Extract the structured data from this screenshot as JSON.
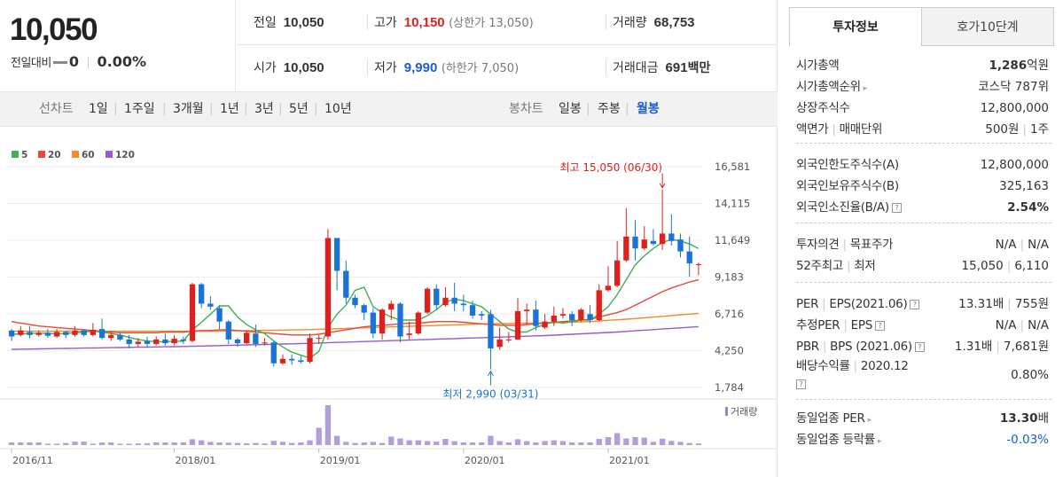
{
  "price": {
    "current": "10,050",
    "change_label": "전일대비",
    "change_value": "0",
    "change_pct": "0.00%"
  },
  "info": {
    "prev_label": "전일",
    "prev_value": "10,050",
    "high_label": "고가",
    "high_value": "10,150",
    "upper_limit": "(상한가 13,050)",
    "volume_label": "거래량",
    "volume_value": "68,753",
    "open_label": "시가",
    "open_value": "10,050",
    "low_label": "저가",
    "low_value": "9,990",
    "lower_limit": "(하한가 7,050)",
    "amount_label": "거래대금",
    "amount_value": "691",
    "amount_unit": "백만"
  },
  "period_bar": {
    "line_label": "선차트",
    "line_options": [
      "1일",
      "1주일",
      "3개월",
      "1년",
      "3년",
      "5년",
      "10년"
    ],
    "candle_label": "봉차트",
    "candle_options": [
      "일봉",
      "주봉",
      "월봉"
    ],
    "selected_candle": "월봉"
  },
  "chart_data": {
    "type": "candlestick",
    "legend": [
      {
        "name": "5",
        "color": "#3cb44b"
      },
      {
        "name": "20",
        "color": "#e8473b"
      },
      {
        "name": "60",
        "color": "#f28c28"
      },
      {
        "name": "120",
        "color": "#9b59d0"
      }
    ],
    "y_ticks": [
      "16,581",
      "14,115",
      "11,649",
      "9,183",
      "6,716",
      "4,250",
      "1,784"
    ],
    "ylim": [
      1784,
      16581
    ],
    "x_ticks": [
      "2016/11",
      "2018/01",
      "2019/01",
      "2020/01",
      "2021/01"
    ],
    "high_annotation": "최고 15,050 (06/30)",
    "low_annotation": "최저 2,990 (03/31)",
    "volume_label": "거래량",
    "ohlc": [
      [
        5600,
        5200,
        5700,
        4900
      ],
      [
        5300,
        5600,
        5900,
        5200
      ],
      [
        5500,
        5300,
        5900,
        5100
      ],
      [
        5300,
        5450,
        5600,
        5200
      ],
      [
        5450,
        5250,
        5700,
        5100
      ],
      [
        5200,
        5500,
        5700,
        5100
      ],
      [
        5500,
        5300,
        5600,
        5100
      ],
      [
        5300,
        5600,
        5900,
        5200
      ],
      [
        5600,
        5300,
        5700,
        5200
      ],
      [
        5300,
        5650,
        6100,
        5200
      ],
      [
        5700,
        5100,
        6400,
        5000
      ],
      [
        5100,
        5300,
        5500,
        4900
      ],
      [
        5300,
        5000,
        5500,
        4900
      ],
      [
        5000,
        4700,
        5300,
        4400
      ],
      [
        4700,
        4850,
        5100,
        4500
      ],
      [
        4900,
        4700,
        5200,
        4500
      ],
      [
        4700,
        5000,
        5200,
        4600
      ],
      [
        5000,
        4750,
        5400,
        4600
      ],
      [
        4750,
        5050,
        5300,
        4600
      ],
      [
        5000,
        4900,
        5200,
        4700
      ],
      [
        4900,
        8700,
        8800,
        4800
      ],
      [
        8700,
        7400,
        8800,
        7100
      ],
      [
        7400,
        7200,
        7900,
        7000
      ],
      [
        7100,
        6200,
        7300,
        5700
      ],
      [
        6200,
        5000,
        6300,
        4700
      ],
      [
        5000,
        4750,
        5100,
        4500
      ],
      [
        4750,
        5450,
        5600,
        4700
      ],
      [
        5400,
        4700,
        6000,
        4500
      ],
      [
        4800,
        4800,
        5100,
        4600
      ],
      [
        4800,
        3400,
        4900,
        3200
      ],
      [
        3400,
        3700,
        4000,
        3300
      ],
      [
        3700,
        3600,
        4000,
        3300
      ],
      [
        3600,
        3500,
        3900,
        3400
      ],
      [
        3500,
        5100,
        5400,
        3400
      ],
      [
        5100,
        5100,
        5300,
        4700
      ],
      [
        5200,
        11800,
        12400,
        5000
      ],
      [
        11800,
        9600,
        11800,
        8300
      ],
      [
        9600,
        7800,
        10300,
        7400
      ],
      [
        7800,
        7300,
        8000,
        7100
      ],
      [
        7300,
        6800,
        7400,
        6300
      ],
      [
        6800,
        5400,
        7100,
        5100
      ],
      [
        5400,
        7000,
        7100,
        5000
      ],
      [
        7000,
        7400,
        7600,
        6300
      ],
      [
        7400,
        5200,
        7500,
        4800
      ],
      [
        5300,
        5400,
        6200,
        5000
      ],
      [
        5400,
        6800,
        6900,
        5300
      ],
      [
        6800,
        8400,
        8500,
        6700
      ],
      [
        8400,
        7300,
        8700,
        7000
      ],
      [
        7300,
        7800,
        8500,
        7200
      ],
      [
        7800,
        7400,
        8800,
        6900
      ],
      [
        7400,
        7300,
        8000,
        6900
      ],
      [
        7300,
        6600,
        7600,
        6400
      ],
      [
        6700,
        6600,
        6900,
        6300
      ],
      [
        6700,
        4400,
        7000,
        2990
      ],
      [
        4500,
        5000,
        5800,
        4300
      ],
      [
        5000,
        5000,
        5500,
        4800
      ],
      [
        5000,
        6900,
        7800,
        5000
      ],
      [
        6900,
        7000,
        7400,
        6000
      ],
      [
        7000,
        5900,
        7600,
        5600
      ],
      [
        5800,
        6200,
        6700,
        5700
      ],
      [
        6200,
        6600,
        7200,
        5900
      ],
      [
        6600,
        6700,
        7100,
        6400
      ],
      [
        6700,
        6300,
        6900,
        5900
      ],
      [
        6300,
        7000,
        7100,
        6200
      ],
      [
        6700,
        6300,
        7300,
        6100
      ],
      [
        6300,
        8300,
        8700,
        6200
      ],
      [
        8300,
        8600,
        9900,
        8200
      ],
      [
        8600,
        10300,
        11600,
        8500
      ],
      [
        10300,
        11900,
        13800,
        10200
      ],
      [
        11900,
        11100,
        13000,
        10300
      ],
      [
        11100,
        11700,
        12600,
        11000
      ],
      [
        11600,
        11400,
        12400,
        11300
      ],
      [
        11400,
        12100,
        15050,
        11000
      ],
      [
        12100,
        11600,
        13400,
        11300
      ],
      [
        11700,
        10900,
        12100,
        10500
      ],
      [
        10900,
        10100,
        11900,
        9200
      ],
      [
        10050,
        10050,
        10150,
        9300
      ]
    ],
    "sma5": [
      5350,
      5380,
      5400,
      5420,
      5410,
      5380,
      5400,
      5450,
      5500,
      5550,
      5500,
      5400,
      5300,
      5150,
      5000,
      4900,
      4850,
      4850,
      4880,
      4880,
      5650,
      6150,
      6700,
      7250,
      7250,
      6500,
      6000,
      5650,
      5400,
      4900,
      4500,
      4150,
      3950,
      3750,
      4200,
      5800,
      6700,
      7300,
      8300,
      8500,
      7200,
      6800,
      6500,
      6300,
      6300,
      6300,
      6600,
      7000,
      7500,
      7700,
      7600,
      7400,
      7200,
      6700,
      6200,
      5700,
      5500,
      5500,
      5800,
      6000,
      6200,
      6100,
      6200,
      6300,
      6300,
      6700,
      7200,
      8000,
      9000,
      10000,
      10600,
      11100,
      11500,
      11700,
      11600,
      11400,
      11100
    ],
    "sma20": [
      6200,
      6100,
      6000,
      5900,
      5850,
      5800,
      5750,
      5700,
      5650,
      5600,
      5550,
      5500,
      5450,
      5450,
      5450,
      5450,
      5450,
      5500,
      5500,
      5500,
      5550,
      5600,
      5600,
      5650,
      5650,
      5600,
      5550,
      5500,
      5450,
      5400,
      5350,
      5300,
      5300,
      5300,
      5350,
      5450,
      5550,
      5650,
      5750,
      5850,
      5900,
      5950,
      6000,
      6050,
      6100,
      6100,
      6150,
      6200,
      6200,
      6200,
      6150,
      6100,
      6050,
      6000,
      5950,
      5950,
      5950,
      6000,
      6050,
      6100,
      6150,
      6200,
      6250,
      6300,
      6350,
      6500,
      6650,
      6800,
      7000,
      7300,
      7600,
      7900,
      8200,
      8450,
      8650,
      8850,
      9000
    ],
    "sma60": [
      5550,
      5550,
      5550,
      5550,
      5550,
      5550,
      5550,
      5550,
      5550,
      5550,
      5550,
      5550,
      5550,
      5550,
      5550,
      5550,
      5550,
      5550,
      5550,
      5550,
      5550,
      5550,
      5550,
      5560,
      5570,
      5580,
      5590,
      5600,
      5610,
      5620,
      5630,
      5640,
      5650,
      5660,
      5680,
      5700,
      5720,
      5740,
      5760,
      5780,
      5800,
      5820,
      5840,
      5860,
      5880,
      5900,
      5920,
      5940,
      5960,
      5980,
      6000,
      6020,
      6040,
      6050,
      6060,
      6070,
      6080,
      6090,
      6100,
      6110,
      6120,
      6140,
      6160,
      6180,
      6200,
      6240,
      6280,
      6320,
      6360,
      6400,
      6450,
      6500,
      6550,
      6600,
      6650,
      6700,
      6750
    ],
    "sma120": [
      4340,
      4350,
      4360,
      4370,
      4380,
      4390,
      4400,
      4410,
      4420,
      4430,
      4440,
      4450,
      4460,
      4470,
      4480,
      4490,
      4500,
      4510,
      4520,
      4530,
      4545,
      4560,
      4575,
      4590,
      4605,
      4620,
      4635,
      4650,
      4665,
      4680,
      4695,
      4710,
      4725,
      4740,
      4760,
      4780,
      4800,
      4820,
      4840,
      4860,
      4880,
      4900,
      4920,
      4940,
      4960,
      4980,
      5000,
      5020,
      5040,
      5060,
      5080,
      5100,
      5120,
      5140,
      5160,
      5180,
      5200,
      5220,
      5240,
      5260,
      5290,
      5320,
      5350,
      5380,
      5410,
      5440,
      5470,
      5500,
      5540,
      5580,
      5620,
      5660,
      5700,
      5740,
      5780,
      5820,
      5860
    ],
    "volume": [
      1,
      1,
      1,
      1,
      0.5,
      0.5,
      0.8,
      1.3,
      1.3,
      0.5,
      1,
      1,
      0.5,
      0.5,
      0.6,
      0.7,
      1,
      1,
      1,
      1,
      2.2,
      1.8,
      1.2,
      1,
      0.9,
      0.8,
      0.7,
      0.8,
      0.6,
      1.6,
      1.2,
      0.8,
      1,
      1.8,
      6.5,
      15,
      3.5,
      1.2,
      0.8,
      1,
      1.2,
      0.8,
      3.2,
      2.5,
      1.8,
      1.8,
      1.5,
      1.3,
      2.3,
      1.5,
      1,
      1,
      1,
      3.5,
      1.5,
      1,
      2.2,
      1.5,
      1,
      1.5,
      1.8,
      1.5,
      1,
      1,
      1,
      2.3,
      3,
      4.5,
      2.5,
      3,
      2.8,
      1.2,
      2.4,
      1.6,
      1.2,
      0.8,
      0.6
    ]
  },
  "right_panel": {
    "tab_active": "투자정보",
    "tab_inactive": "호가10단계",
    "market_cap_label": "시가총액",
    "market_cap_value": "1,286",
    "market_cap_unit": "억원",
    "market_rank_label": "시가총액순위",
    "market_rank_value": "코스닥 787위",
    "shares_label": "상장주식수",
    "shares_value": "12,800,000",
    "par_label": "액면가",
    "trade_unit_label": "매매단위",
    "par_value": "500원",
    "trade_unit_value": "1주",
    "foreign_limit_label": "외국인한도주식수(A)",
    "foreign_limit_value": "12,800,000",
    "foreign_hold_label": "외국인보유주식수(B)",
    "foreign_hold_value": "325,163",
    "foreign_ratio_label": "외국인소진율(B/A)",
    "foreign_ratio_value": "2.54%",
    "opinion_label": "투자의견",
    "target_label": "목표주가",
    "opinion_value": "N/A",
    "target_value": "N/A",
    "w52_high_label": "52주최고",
    "w52_low_label": "최저",
    "w52_high_value": "15,050",
    "w52_low_value": "6,110",
    "per_label": "PER",
    "eps_label": "EPS(2021.06)",
    "per_value": "13.31배",
    "eps_value": "755원",
    "est_per_label": "추정PER",
    "est_eps_label": "EPS",
    "est_per_value": "N/A",
    "est_eps_value": "N/A",
    "pbr_label": "PBR",
    "bps_label": "BPS (2021.06)",
    "pbr_value": "1.31배",
    "bps_value": "7,681원",
    "div_label": "배당수익률",
    "div_date": "2020.12",
    "div_value": "0.80%",
    "ind_per_label": "동일업종 PER",
    "ind_per_value": "13.30",
    "ind_per_unit": "배",
    "ind_rate_label": "동일업종 등락률",
    "ind_rate_value": "-0.03%"
  }
}
